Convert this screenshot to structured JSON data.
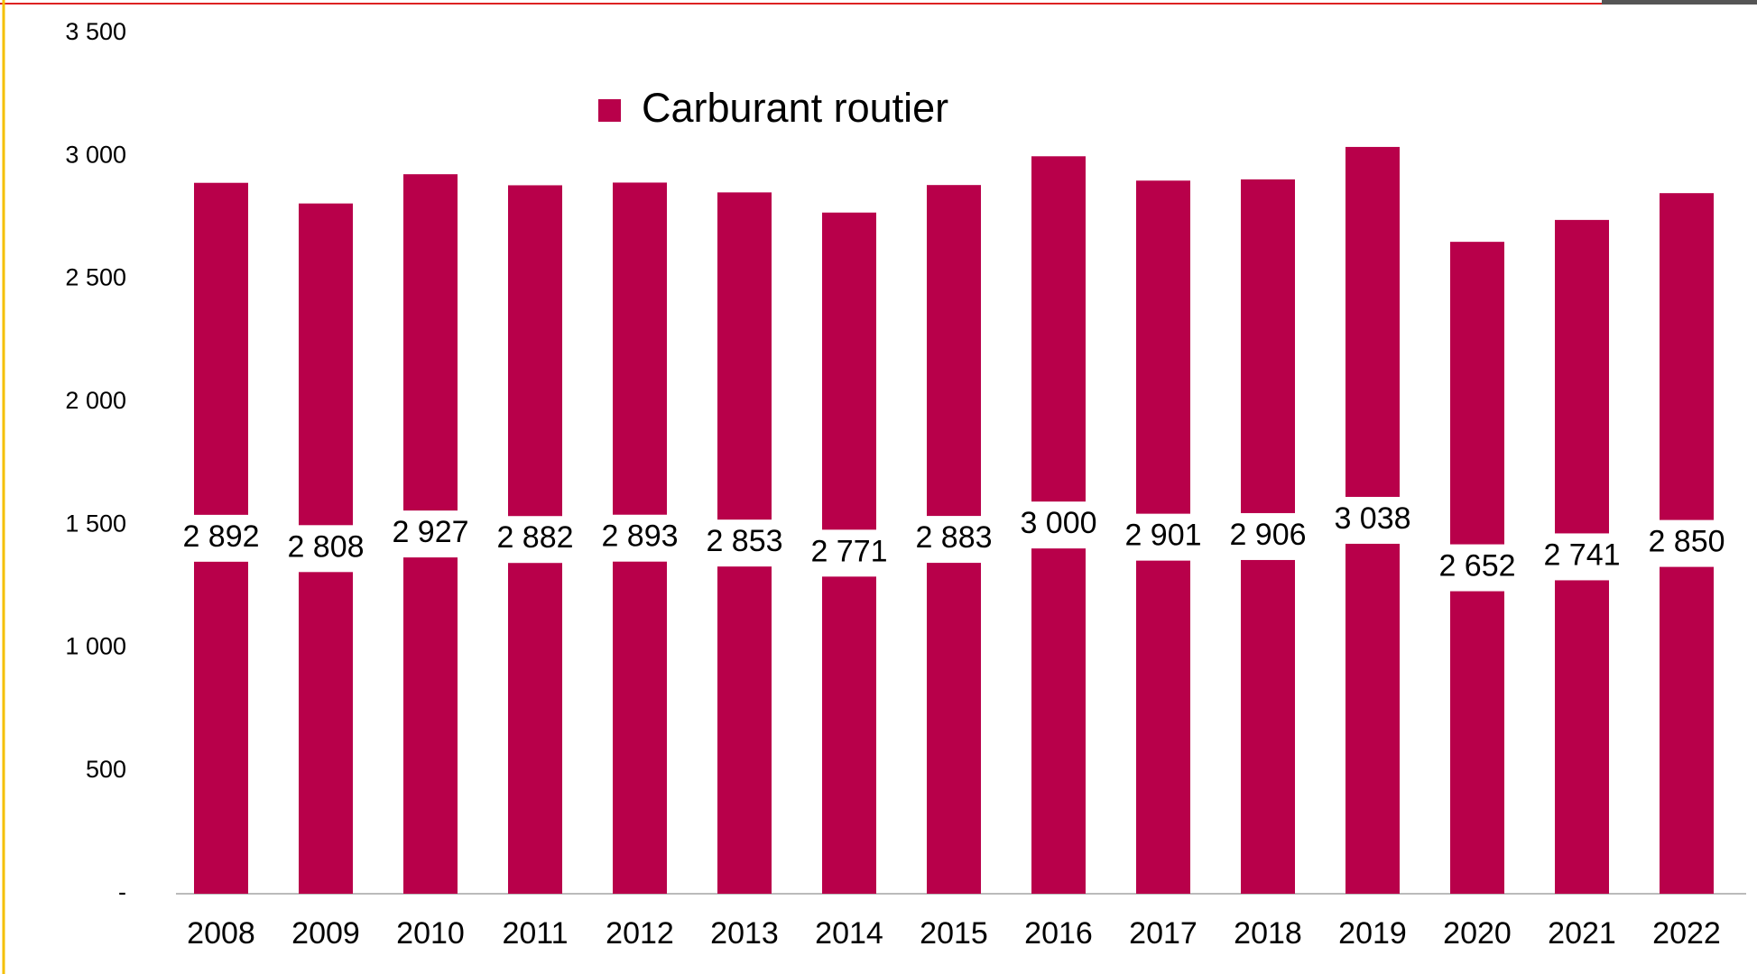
{
  "chart_data": {
    "type": "bar",
    "categories": [
      "2008",
      "2009",
      "2010",
      "2011",
      "2012",
      "2013",
      "2014",
      "2015",
      "2016",
      "2017",
      "2018",
      "2019",
      "2020",
      "2021",
      "2022"
    ],
    "series": [
      {
        "name": "Carburant routier",
        "color": "#b8004a",
        "values": [
          2892,
          2808,
          2927,
          2882,
          2893,
          2853,
          2771,
          2883,
          3000,
          2901,
          2906,
          3038,
          2652,
          2741,
          2850
        ],
        "value_labels": [
          "2 892",
          "2 808",
          "2 927",
          "2 882",
          "2 893",
          "2 853",
          "2 771",
          "2 883",
          "3 000",
          "2 901",
          "2 906",
          "3 038",
          "2 652",
          "2 741",
          "2 850"
        ]
      }
    ],
    "ylim": [
      0,
      3500
    ],
    "yticks": [
      {
        "value": 0,
        "label": "-"
      },
      500,
      {
        "value": 1000,
        "label": "1 000"
      },
      {
        "value": 1500,
        "label": "1 500"
      },
      {
        "value": 2000,
        "label": "2 000"
      },
      {
        "value": 2500,
        "label": "2 500"
      },
      {
        "value": 3000,
        "label": "3 000"
      },
      {
        "value": 3500,
        "label": "3 500"
      }
    ],
    "grid": false
  }
}
